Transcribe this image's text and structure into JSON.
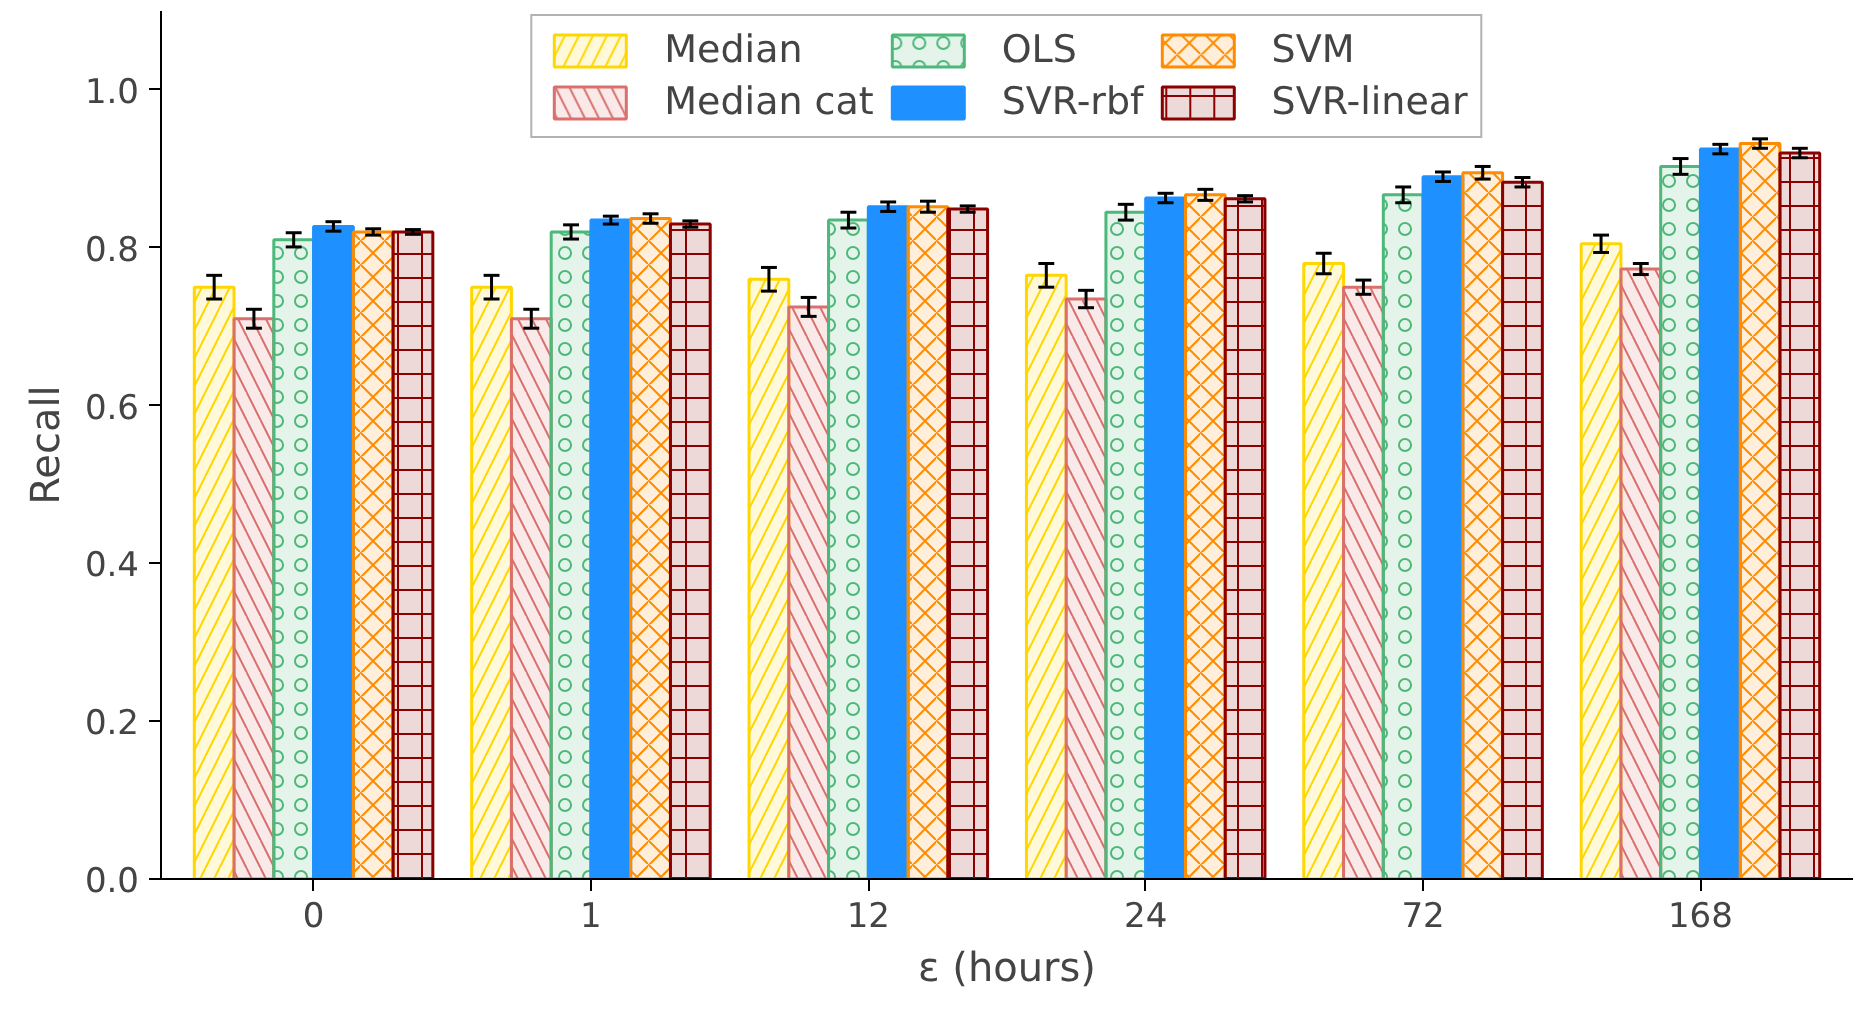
{
  "chart_data": {
    "type": "bar",
    "xlabel": "ε (hours)",
    "ylabel": "Recall",
    "categories": [
      "0",
      "1",
      "12",
      "24",
      "72",
      "168"
    ],
    "ylim": [
      0,
      1.1
    ],
    "yticks": [
      {
        "value": 0,
        "label": "0.0"
      },
      {
        "value": 0.2,
        "label": "0.2"
      },
      {
        "value": 0.4,
        "label": "0.4"
      },
      {
        "value": 0.6,
        "label": "0.6"
      },
      {
        "value": 0.8,
        "label": "0.8"
      },
      {
        "value": 1,
        "label": "1.0"
      }
    ],
    "grid": false,
    "legend": "top",
    "series": [
      {
        "name": "Median",
        "color": "#ffd700",
        "values": [
          0.75,
          0.75,
          0.76,
          0.765,
          0.78,
          0.805
        ],
        "errors": [
          0.015,
          0.015,
          0.015,
          0.015,
          0.013,
          0.011
        ]
      },
      {
        "name": "Median cat",
        "color": "#d9706e",
        "values": [
          0.71,
          0.71,
          0.725,
          0.735,
          0.75,
          0.773
        ],
        "errors": [
          0.012,
          0.012,
          0.012,
          0.011,
          0.009,
          0.007
        ]
      },
      {
        "name": "OLS",
        "color": "#4cb87a",
        "values": [
          0.81,
          0.82,
          0.835,
          0.845,
          0.867,
          0.903
        ],
        "errors": [
          0.009,
          0.009,
          0.01,
          0.01,
          0.01,
          0.01
        ]
      },
      {
        "name": "SVR-rbf",
        "color": "#1e90ff",
        "values": [
          0.827,
          0.835,
          0.852,
          0.863,
          0.89,
          0.925
        ],
        "errors": [
          0.006,
          0.005,
          0.006,
          0.006,
          0.006,
          0.006
        ]
      },
      {
        "name": "SVM",
        "color": "#ff8c00",
        "values": [
          0.82,
          0.837,
          0.852,
          0.867,
          0.895,
          0.932
        ],
        "errors": [
          0.004,
          0.006,
          0.007,
          0.007,
          0.008,
          0.006
        ]
      },
      {
        "name": "SVR-linear",
        "color": "#8b0000",
        "values": [
          0.82,
          0.83,
          0.849,
          0.862,
          0.883,
          0.92
        ],
        "errors": [
          0.003,
          0.004,
          0.004,
          0.004,
          0.006,
          0.006
        ]
      }
    ]
  }
}
